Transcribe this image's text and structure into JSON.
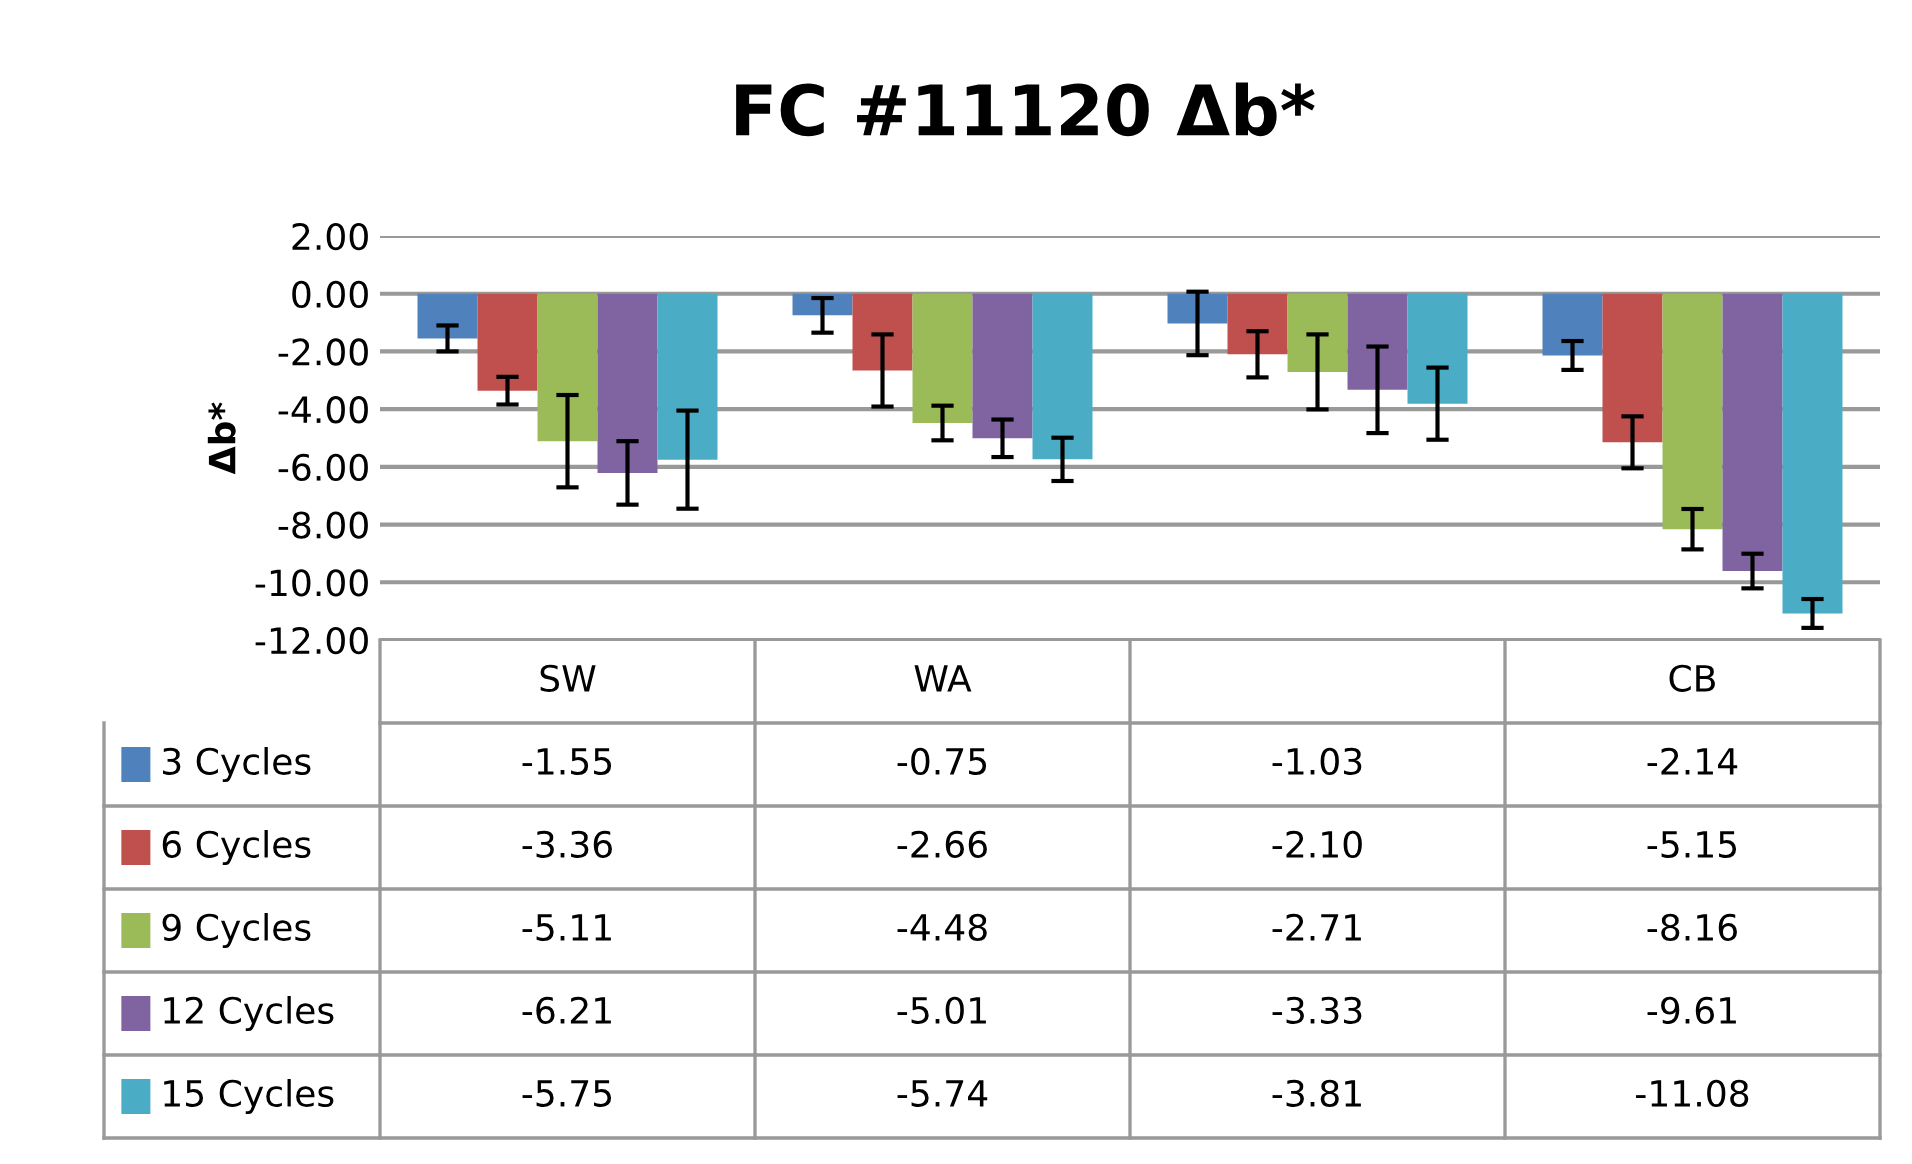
{
  "chart_data": {
    "type": "bar",
    "title": "FC #11120 Δb*",
    "ylabel": "Δb*",
    "categories": [
      "SW",
      "WA",
      null,
      "CB"
    ],
    "series": [
      {
        "name": "3 Cycles",
        "color": "#4f81bd",
        "values": [
          -1.55,
          -0.75,
          -1.03,
          -2.14
        ],
        "errors": [
          0.45,
          0.6,
          1.1,
          0.5
        ],
        "value_labels": [
          "-1.55",
          "-0.75",
          "-1.03",
          "-2.14"
        ]
      },
      {
        "name": "6 Cycles",
        "color": "#c0504d",
        "values": [
          -3.36,
          -2.66,
          -2.1,
          -5.15
        ],
        "errors": [
          0.48,
          1.25,
          0.8,
          0.9
        ],
        "value_labels": [
          "-3.36",
          "-2.66",
          "-2.10",
          "-5.15"
        ]
      },
      {
        "name": "9 Cycles",
        "color": "#9bbb59",
        "values": [
          -5.11,
          -4.48,
          -2.71,
          -8.16
        ],
        "errors": [
          1.6,
          0.6,
          1.3,
          0.7
        ],
        "value_labels": [
          "-5.11",
          "-4.48",
          "-2.71",
          "-8.16"
        ]
      },
      {
        "name": "12 Cycles",
        "color": "#8064a2",
        "values": [
          -6.21,
          -5.01,
          -3.33,
          -9.61
        ],
        "errors": [
          1.1,
          0.65,
          1.5,
          0.6
        ],
        "value_labels": [
          "-6.21",
          "-5.01",
          "-3.33",
          "-9.61"
        ]
      },
      {
        "name": "15 Cycles",
        "color": "#4bacc6",
        "values": [
          -5.75,
          -5.74,
          -3.81,
          -11.08
        ],
        "errors": [
          1.7,
          0.75,
          1.25,
          0.5
        ],
        "value_labels": [
          "-5.75",
          "-5.74",
          "-3.81",
          "-11.08"
        ]
      }
    ],
    "ylim": [
      -12,
      2
    ],
    "yticks": [
      {
        "value": 2,
        "label": "2.00"
      },
      {
        "value": 0,
        "label": "0.00"
      },
      {
        "value": -2,
        "label": "-2.00"
      },
      {
        "value": -4,
        "label": "-4.00"
      },
      {
        "value": -6,
        "label": "-6.00"
      },
      {
        "value": -8,
        "label": "-8.00"
      },
      {
        "value": -10,
        "label": "-10.00"
      },
      {
        "value": -12,
        "label": "-12.00"
      }
    ],
    "grid": "y",
    "legend": "bottom left"
  }
}
